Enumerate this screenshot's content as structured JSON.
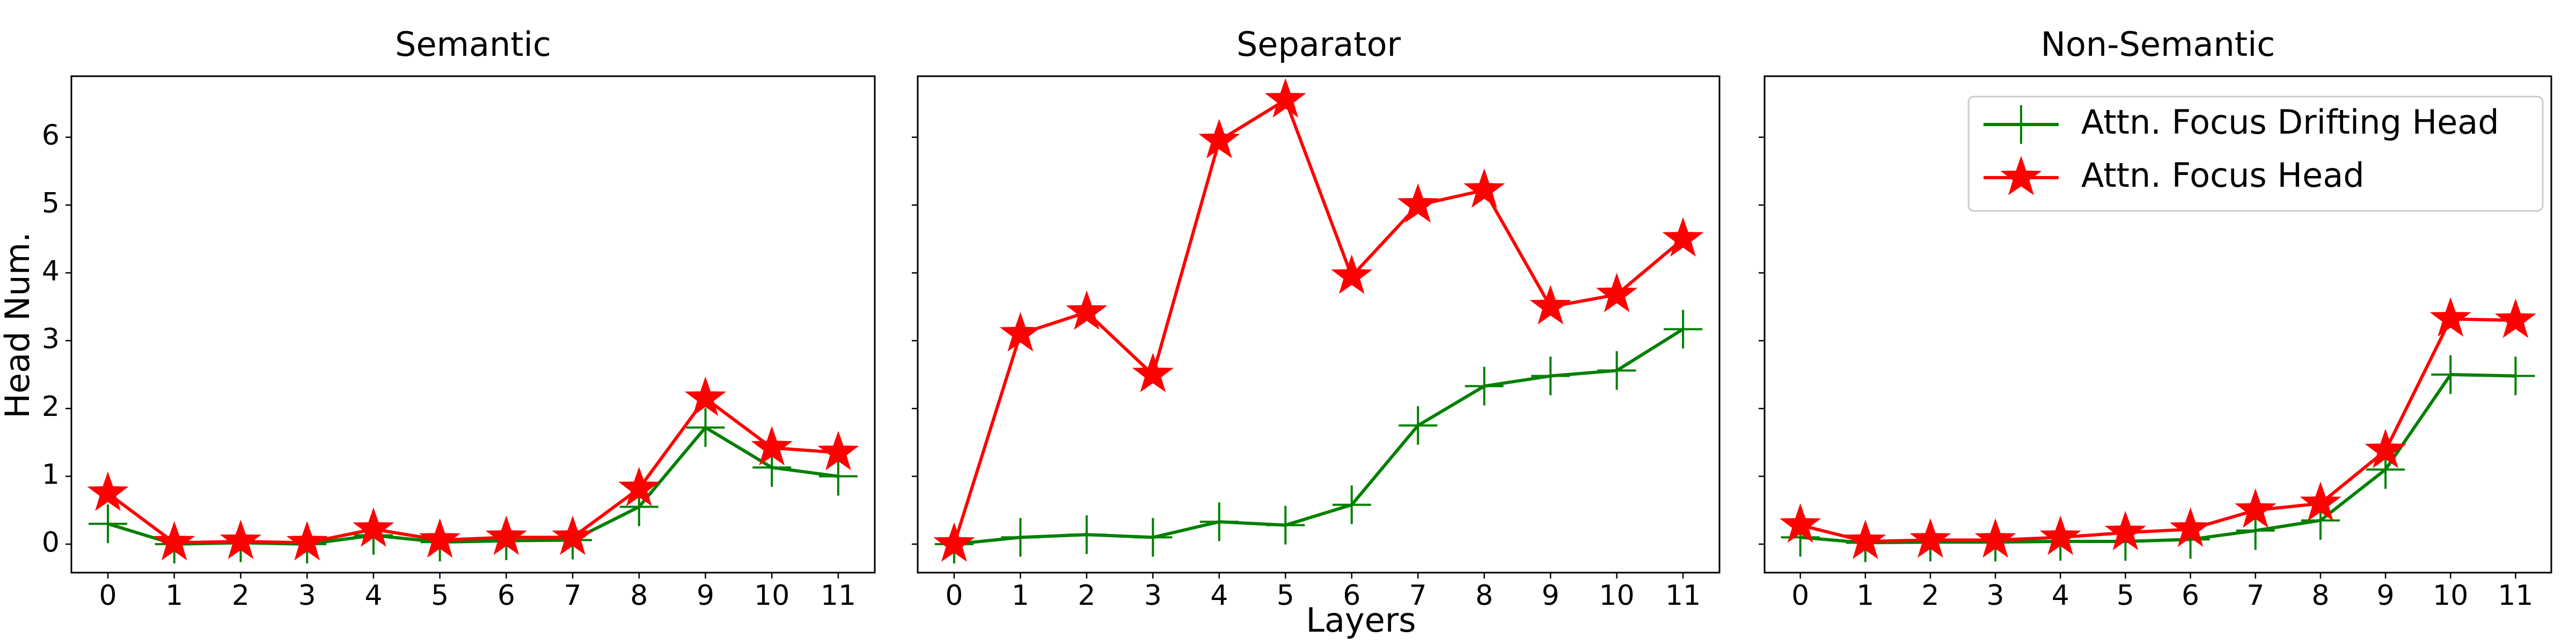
{
  "chart_data": [
    {
      "type": "line",
      "title": "Semantic",
      "ylabel": "Head Num.",
      "x": [
        0,
        1,
        2,
        3,
        4,
        5,
        6,
        7,
        8,
        9,
        10,
        11
      ],
      "series": [
        {
          "color": "#008000",
          "marker": "plus",
          "values": [
            0.3,
            0.0,
            0.02,
            0.0,
            0.13,
            0.03,
            0.05,
            0.06,
            0.55,
            1.72,
            1.13,
            1.0
          ]
        },
        {
          "color": "#ff0000",
          "marker": "star",
          "values": [
            0.75,
            0.02,
            0.04,
            0.02,
            0.22,
            0.06,
            0.1,
            0.1,
            0.82,
            2.15,
            1.42,
            1.35
          ]
        }
      ],
      "xlim": [
        -0.55,
        11.55
      ],
      "ylim": [
        -0.42,
        6.9
      ],
      "xticks": [
        0,
        1,
        2,
        3,
        4,
        5,
        6,
        7,
        8,
        9,
        10,
        11
      ],
      "yticks": [
        0,
        1,
        2,
        3,
        4,
        5,
        6
      ]
    },
    {
      "type": "line",
      "title": "Separator",
      "xlabel": "Layers",
      "sharey": true,
      "x": [
        0,
        1,
        2,
        3,
        4,
        5,
        6,
        7,
        8,
        9,
        10,
        11
      ],
      "series": [
        {
          "color": "#008000",
          "marker": "plus",
          "values": [
            0.0,
            0.1,
            0.14,
            0.1,
            0.33,
            0.28,
            0.58,
            1.75,
            2.33,
            2.48,
            2.56,
            3.17
          ]
        },
        {
          "color": "#ff0000",
          "marker": "star",
          "values": [
            0.0,
            3.1,
            3.42,
            2.5,
            5.95,
            6.55,
            3.95,
            5.0,
            5.22,
            3.5,
            3.68,
            4.5
          ]
        }
      ],
      "xlim": [
        -0.55,
        11.55
      ],
      "ylim": [
        -0.42,
        6.9
      ],
      "xticks": [
        0,
        1,
        2,
        3,
        4,
        5,
        6,
        7,
        8,
        9,
        10,
        11
      ]
    },
    {
      "type": "line",
      "title": "Non-Semantic",
      "sharey": true,
      "legend": "upper right",
      "x": [
        0,
        1,
        2,
        3,
        4,
        5,
        6,
        7,
        8,
        9,
        10,
        11
      ],
      "series": [
        {
          "name": "Attn. Focus Drifting Head",
          "color": "#008000",
          "marker": "plus",
          "values": [
            0.1,
            0.02,
            0.03,
            0.03,
            0.04,
            0.04,
            0.07,
            0.2,
            0.35,
            1.1,
            2.5,
            2.48
          ]
        },
        {
          "name": "Attn. Focus Head",
          "color": "#ff0000",
          "marker": "star",
          "values": [
            0.28,
            0.04,
            0.06,
            0.06,
            0.1,
            0.17,
            0.22,
            0.5,
            0.6,
            1.38,
            3.32,
            3.3
          ]
        }
      ],
      "xlim": [
        -0.55,
        11.55
      ],
      "ylim": [
        -0.42,
        6.9
      ],
      "xticks": [
        0,
        1,
        2,
        3,
        4,
        5,
        6,
        7,
        8,
        9,
        10,
        11
      ]
    }
  ]
}
